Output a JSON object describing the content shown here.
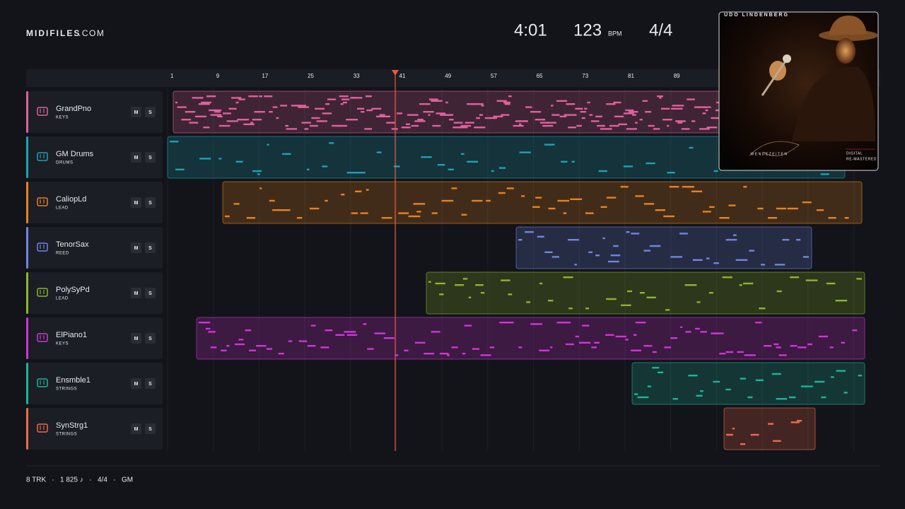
{
  "header": {
    "brand": "MIDIFILES",
    "brand_suffix": ".COM",
    "time": "4:01",
    "tempo": 123,
    "tempo_unit": "BPM",
    "time_signature": "4/4"
  },
  "ruler": [
    1,
    9,
    17,
    25,
    33,
    41,
    49,
    57,
    65,
    73,
    81,
    89
  ],
  "tracks": [
    {
      "name": "GrandPno",
      "category": "KEYS",
      "color": "#e0609c",
      "buttons": [
        "M",
        "S"
      ]
    },
    {
      "name": "GM Drums",
      "category": "DRUMS",
      "color": "#1aa3b5",
      "buttons": [
        "M",
        "S"
      ]
    },
    {
      "name": "CaliopLd",
      "category": "LEAD",
      "color": "#e8821e",
      "buttons": [
        "M",
        "S"
      ]
    },
    {
      "name": "TenorSax",
      "category": "REED",
      "color": "#6f86e0",
      "buttons": [
        "M",
        "S"
      ]
    },
    {
      "name": "PolySyPd",
      "category": "LEAD",
      "color": "#8db52a",
      "buttons": [
        "M",
        "S"
      ]
    },
    {
      "name": "ElPiano1",
      "category": "KEYS",
      "color": "#d233d8",
      "buttons": [
        "M",
        "S"
      ]
    },
    {
      "name": "Ensmble1",
      "category": "STRINGS",
      "color": "#1bb59a",
      "buttons": [
        "M",
        "S"
      ]
    },
    {
      "name": "SynStrg1",
      "category": "STRINGS",
      "color": "#f06a4a",
      "buttons": [
        "M",
        "S"
      ]
    }
  ],
  "album": {
    "artist": "UDO LINDENBERG",
    "title": "WENDEZEITEN",
    "badge": [
      "DIGITAL",
      "RE-MASTERED"
    ]
  },
  "footer": [
    "8 TRK",
    "1 825 ♪",
    "4/4",
    "GM"
  ]
}
